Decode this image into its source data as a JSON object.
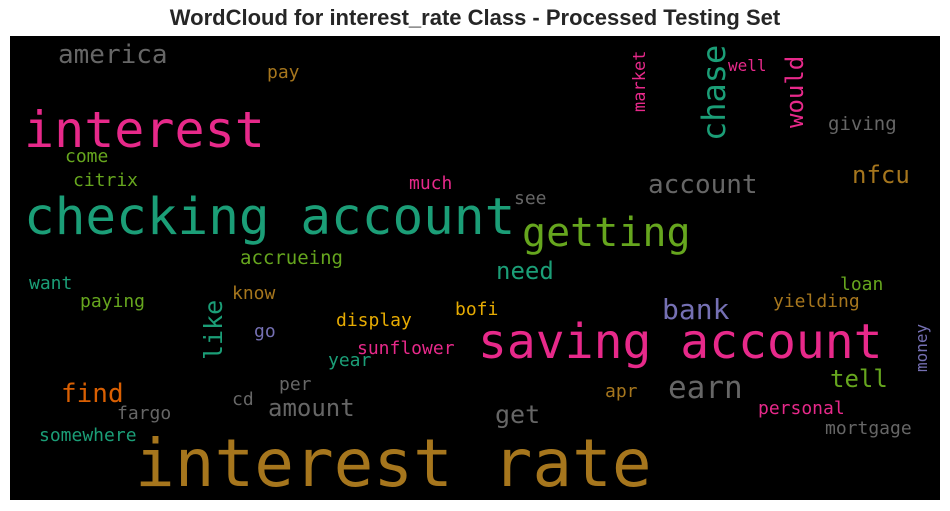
{
  "chart_data": {
    "type": "wordcloud",
    "title": "WordCloud for interest_rate Class - Processed Testing Set",
    "background": "#000000",
    "words": [
      {
        "text": "interest rate",
        "color": "#a6761d"
      },
      {
        "text": "checking account",
        "color": "#1b9e77"
      },
      {
        "text": "saving account",
        "color": "#e7298a"
      },
      {
        "text": "interest",
        "color": "#e7298a"
      },
      {
        "text": "getting",
        "color": "#66a61e"
      },
      {
        "text": "chase",
        "color": "#1b9e77"
      },
      {
        "text": "america",
        "color": "#666666"
      },
      {
        "text": "account",
        "color": "#666666"
      },
      {
        "text": "earn",
        "color": "#666666"
      },
      {
        "text": "bank",
        "color": "#7570b3"
      },
      {
        "text": "nfcu",
        "color": "#a6761d"
      },
      {
        "text": "would",
        "color": "#e7298a"
      },
      {
        "text": "like",
        "color": "#1b9e77"
      },
      {
        "text": "find",
        "color": "#d95f02"
      },
      {
        "text": "need",
        "color": "#1b9e77"
      },
      {
        "text": "amount",
        "color": "#666666"
      },
      {
        "text": "get",
        "color": "#666666"
      },
      {
        "text": "tell",
        "color": "#66a61e"
      },
      {
        "text": "market",
        "color": "#e7298a"
      },
      {
        "text": "giving",
        "color": "#666666"
      },
      {
        "text": "well",
        "color": "#e7298a"
      },
      {
        "text": "pay",
        "color": "#a6761d"
      },
      {
        "text": "come",
        "color": "#66a61e"
      },
      {
        "text": "citrix",
        "color": "#66a61e"
      },
      {
        "text": "much",
        "color": "#e7298a"
      },
      {
        "text": "see",
        "color": "#666666"
      },
      {
        "text": "accrueing",
        "color": "#66a61e"
      },
      {
        "text": "want",
        "color": "#1b9e77"
      },
      {
        "text": "paying",
        "color": "#66a61e"
      },
      {
        "text": "know",
        "color": "#a6761d"
      },
      {
        "text": "bofi",
        "color": "#e6ab02"
      },
      {
        "text": "loan",
        "color": "#66a61e"
      },
      {
        "text": "yielding",
        "color": "#a6761d"
      },
      {
        "text": "display",
        "color": "#e6ab02"
      },
      {
        "text": "go",
        "color": "#7570b3"
      },
      {
        "text": "sunflower",
        "color": "#e7298a"
      },
      {
        "text": "year",
        "color": "#1b9e77"
      },
      {
        "text": "per",
        "color": "#666666"
      },
      {
        "text": "cd",
        "color": "#666666"
      },
      {
        "text": "fargo",
        "color": "#666666"
      },
      {
        "text": "apr",
        "color": "#a6761d"
      },
      {
        "text": "personal",
        "color": "#e7298a"
      },
      {
        "text": "money",
        "color": "#7570b3"
      },
      {
        "text": "mortgage",
        "color": "#666666"
      },
      {
        "text": "somewhere",
        "color": "#1b9e77"
      }
    ]
  }
}
